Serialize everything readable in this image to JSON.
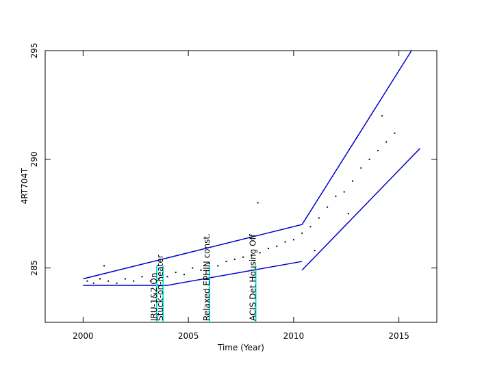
{
  "chart_data": {
    "type": "scatter",
    "x_label": "Time (Year)",
    "y_label": "4RT704T",
    "xlim": [
      1998.2,
      2016.8
    ],
    "ylim": [
      282.5,
      295
    ],
    "xticks": [
      2000,
      2005,
      2010,
      2015
    ],
    "yticks": [
      285,
      290,
      295
    ],
    "point_color": "#000000",
    "x": [
      2000.2,
      2000.5,
      2000.8,
      2001.0,
      2001.2,
      2001.6,
      2002.0,
      2002.4,
      2002.8,
      2003.2,
      2003.6,
      2004.0,
      2004.4,
      2004.8,
      2005.2,
      2005.6,
      2006.0,
      2006.4,
      2006.8,
      2007.2,
      2007.6,
      2008.0,
      2008.3,
      2008.4,
      2008.8,
      2009.2,
      2009.6,
      2010.0,
      2010.4,
      2010.8,
      2011.0,
      2011.2,
      2011.6,
      2012.0,
      2012.4,
      2012.6,
      2012.8,
      2013.0,
      2013.2,
      2013.6,
      2014.0,
      2014.2,
      2014.4,
      2014.8
    ],
    "y": [
      284.4,
      284.3,
      284.5,
      285.1,
      284.4,
      284.3,
      284.5,
      284.4,
      284.6,
      284.4,
      284.5,
      284.6,
      284.8,
      284.7,
      285.0,
      284.9,
      285.2,
      285.1,
      285.3,
      285.4,
      285.5,
      285.6,
      288.0,
      285.7,
      285.9,
      286.0,
      286.2,
      286.3,
      286.6,
      286.9,
      285.8,
      287.3,
      287.8,
      288.3,
      288.5,
      287.5,
      289.0,
      291.0,
      289.6,
      290.0,
      290.4,
      292.0,
      290.8,
      291.2
    ],
    "trend_color": "#0000cc",
    "trend_lines": [
      {
        "x": [
          2000,
          2010.4,
          2015.6
        ],
        "y": [
          284.5,
          287.0,
          295.0
        ]
      },
      {
        "x": [
          2000,
          2004.0,
          2010.4
        ],
        "y": [
          284.2,
          284.2,
          285.3
        ]
      },
      {
        "x": [
          2010.4,
          2016.0
        ],
        "y": [
          284.9,
          290.5
        ]
      }
    ],
    "event_color": "#00e5e5",
    "events": [
      {
        "x": 2003.5,
        "label": "IRU-1&2 On"
      },
      {
        "x": 2003.8,
        "label": "Stuck-on-heater"
      },
      {
        "x": 2006.0,
        "label": "Relaxed EPHIN const."
      },
      {
        "x": 2008.2,
        "label": "ACIS Det Housing Off"
      }
    ]
  }
}
